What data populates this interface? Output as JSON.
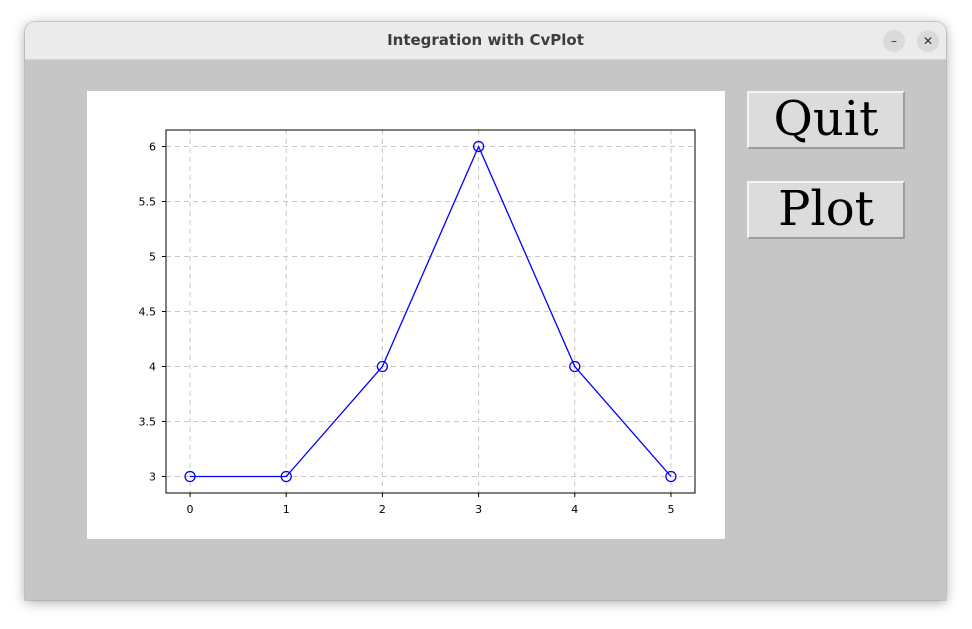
{
  "window": {
    "title": "Integration with CvPlot",
    "minimize_glyph": "–",
    "close_glyph": "✕"
  },
  "buttons": {
    "quit_label": "Quit",
    "plot_label": "Plot"
  },
  "colors": {
    "series": "#0000ff",
    "grid": "#c8c8c8",
    "client_background": "#c6c6c6",
    "plot_background": "#ffffff"
  },
  "chart_data": {
    "type": "line",
    "title": "",
    "xlabel": "",
    "ylabel": "",
    "x": [
      0,
      1,
      2,
      3,
      4,
      5
    ],
    "series": [
      {
        "values": [
          3,
          3,
          4,
          6,
          4,
          3
        ],
        "marker": "circle"
      }
    ],
    "xlim": [
      -0.25,
      5.25
    ],
    "ylim": [
      2.85,
      6.15
    ],
    "xticks": [
      0,
      1,
      2,
      3,
      4,
      5
    ],
    "xtick_labels": [
      "0",
      "1",
      "2",
      "3",
      "4",
      "5"
    ],
    "yticks": [
      3,
      3.5,
      4,
      4.5,
      5,
      5.5,
      6
    ],
    "ytick_labels": [
      "3",
      "3.5",
      "4",
      "4.5",
      "5",
      "5.5",
      "6"
    ],
    "grid": true,
    "grid_style": "dashed",
    "legend": "none"
  }
}
